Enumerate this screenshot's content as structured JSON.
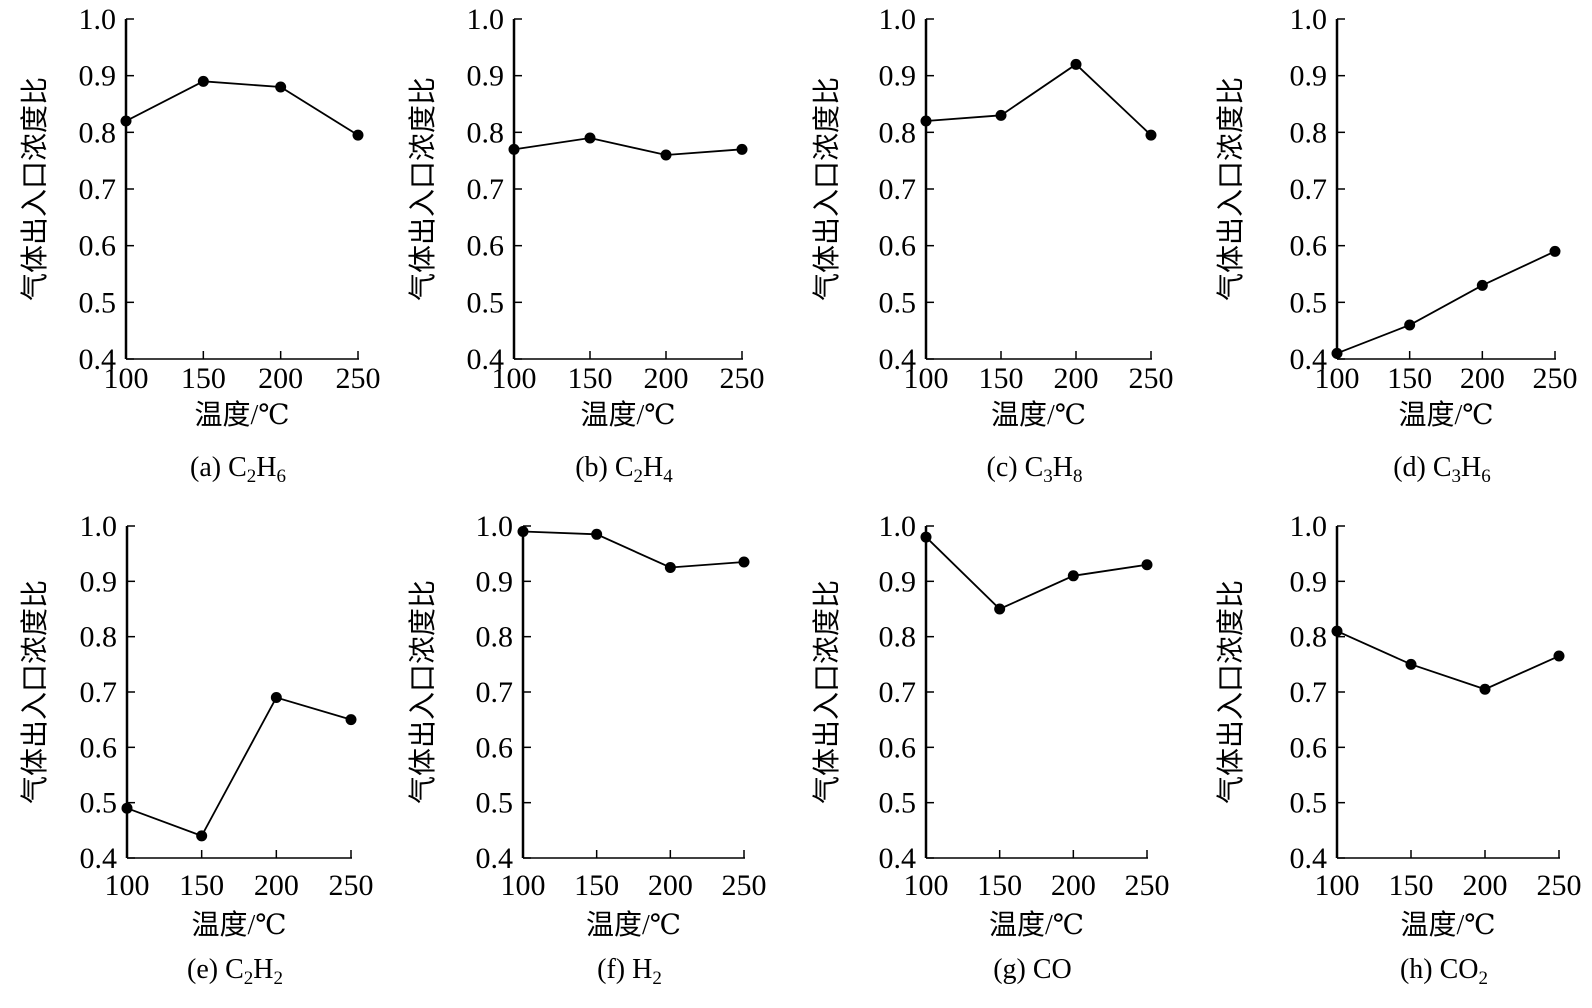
{
  "chart_data": [
    {
      "type": "line",
      "panel": "a",
      "caption_prefix": "(a) ",
      "caption_formula": [
        [
          "C",
          ""
        ],
        [
          "2",
          "sub"
        ],
        [
          "H",
          ""
        ],
        [
          "6",
          "sub"
        ]
      ],
      "caption_text": "(a) C2H6",
      "xlabel": "温度/℃",
      "ylabel": "气体出入口浓度比",
      "x": [
        100,
        150,
        200,
        250
      ],
      "values": [
        0.82,
        0.89,
        0.88,
        0.795
      ],
      "xticks": [
        "100",
        "150",
        "200",
        "250"
      ],
      "yticks": [
        "0.4",
        "0.5",
        "0.6",
        "0.7",
        "0.8",
        "0.9",
        "1.0"
      ],
      "xlim": [
        100,
        250
      ],
      "ylim": [
        0.4,
        1.0
      ],
      "grid": false,
      "marker": "filled-circle"
    },
    {
      "type": "line",
      "panel": "b",
      "caption_prefix": "(b) ",
      "caption_formula": [
        [
          "C",
          ""
        ],
        [
          "2",
          "sub"
        ],
        [
          "H",
          ""
        ],
        [
          "4",
          "sub"
        ]
      ],
      "caption_text": "(b) C2H4",
      "xlabel": "温度/℃",
      "ylabel": "气体出入口浓度比",
      "x": [
        100,
        150,
        200,
        250
      ],
      "values": [
        0.77,
        0.79,
        0.76,
        0.77
      ],
      "xticks": [
        "100",
        "150",
        "200",
        "250"
      ],
      "yticks": [
        "0.4",
        "0.5",
        "0.6",
        "0.7",
        "0.8",
        "0.9",
        "1.0"
      ],
      "xlim": [
        100,
        250
      ],
      "ylim": [
        0.4,
        1.0
      ],
      "grid": false,
      "marker": "filled-circle"
    },
    {
      "type": "line",
      "panel": "c",
      "caption_prefix": "(c) ",
      "caption_formula": [
        [
          "C",
          ""
        ],
        [
          "3",
          "sub"
        ],
        [
          "H",
          ""
        ],
        [
          "8",
          "sub"
        ]
      ],
      "caption_text": "(c) C3H8",
      "xlabel": "温度/℃",
      "ylabel": "气体出入口浓度比",
      "x": [
        100,
        150,
        200,
        250
      ],
      "values": [
        0.82,
        0.83,
        0.92,
        0.795
      ],
      "xticks": [
        "100",
        "150",
        "200",
        "250"
      ],
      "yticks": [
        "0.4",
        "0.5",
        "0.6",
        "0.7",
        "0.8",
        "0.9",
        "1.0"
      ],
      "xlim": [
        100,
        250
      ],
      "ylim": [
        0.4,
        1.0
      ],
      "grid": false,
      "marker": "filled-circle"
    },
    {
      "type": "line",
      "panel": "d",
      "caption_prefix": "(d) ",
      "caption_formula": [
        [
          "C",
          ""
        ],
        [
          "3",
          "sub"
        ],
        [
          "H",
          ""
        ],
        [
          "6",
          "sub"
        ]
      ],
      "caption_text": "(d) C3H6",
      "xlabel": "温度/℃",
      "ylabel": "气体出入口浓度比",
      "x": [
        100,
        150,
        200,
        250
      ],
      "values": [
        0.41,
        0.46,
        0.53,
        0.59
      ],
      "xticks": [
        "100",
        "150",
        "200",
        "250"
      ],
      "yticks": [
        "0.4",
        "0.5",
        "0.6",
        "0.7",
        "0.8",
        "0.9",
        "1.0"
      ],
      "xlim": [
        100,
        250
      ],
      "ylim": [
        0.4,
        1.0
      ],
      "grid": false,
      "marker": "filled-circle"
    },
    {
      "type": "line",
      "panel": "e",
      "caption_prefix": "(e) ",
      "caption_formula": [
        [
          "C",
          ""
        ],
        [
          "2",
          "sub"
        ],
        [
          "H",
          ""
        ],
        [
          "2",
          "sub"
        ]
      ],
      "caption_text": "(e) C2H2",
      "xlabel": "温度/℃",
      "ylabel": "气体出入口浓度比",
      "x": [
        100,
        150,
        200,
        250
      ],
      "values": [
        0.49,
        0.44,
        0.69,
        0.65
      ],
      "xticks": [
        "100",
        "150",
        "200",
        "250"
      ],
      "yticks": [
        "0.4",
        "0.5",
        "0.6",
        "0.7",
        "0.8",
        "0.9",
        "1.0"
      ],
      "xlim": [
        100,
        250
      ],
      "ylim": [
        0.4,
        1.0
      ],
      "grid": false,
      "marker": "filled-circle"
    },
    {
      "type": "line",
      "panel": "f",
      "caption_prefix": "(f) ",
      "caption_formula": [
        [
          "H",
          ""
        ],
        [
          "2",
          "sub"
        ]
      ],
      "caption_text": "(f) H2",
      "xlabel": "温度/℃",
      "ylabel": "气体出入口浓度比",
      "x": [
        100,
        150,
        200,
        250
      ],
      "values": [
        0.99,
        0.985,
        0.925,
        0.935
      ],
      "xticks": [
        "100",
        "150",
        "200",
        "250"
      ],
      "yticks": [
        "0.4",
        "0.5",
        "0.6",
        "0.7",
        "0.8",
        "0.9",
        "1.0"
      ],
      "xlim": [
        100,
        250
      ],
      "ylim": [
        0.4,
        1.0
      ],
      "grid": false,
      "marker": "filled-circle"
    },
    {
      "type": "line",
      "panel": "g",
      "caption_prefix": "(g) ",
      "caption_formula": [
        [
          "CO",
          ""
        ]
      ],
      "caption_text": "(g) CO",
      "xlabel": "温度/℃",
      "ylabel": "气体出入口浓度比",
      "x": [
        100,
        150,
        200,
        250
      ],
      "values": [
        0.98,
        0.85,
        0.91,
        0.93
      ],
      "xticks": [
        "100",
        "150",
        "200",
        "250"
      ],
      "yticks": [
        "0.4",
        "0.5",
        "0.6",
        "0.7",
        "0.8",
        "0.9",
        "1.0"
      ],
      "xlim": [
        100,
        250
      ],
      "ylim": [
        0.4,
        1.0
      ],
      "grid": false,
      "marker": "filled-circle"
    },
    {
      "type": "line",
      "panel": "h",
      "caption_prefix": "(h) ",
      "caption_formula": [
        [
          "CO",
          ""
        ],
        [
          "2",
          "sub"
        ]
      ],
      "caption_text": "(h) CO2",
      "xlabel": "温度/℃",
      "ylabel": "气体出入口浓度比",
      "x": [
        100,
        150,
        200,
        250
      ],
      "values": [
        0.81,
        0.75,
        0.705,
        0.765
      ],
      "xticks": [
        "100",
        "150",
        "200",
        "250"
      ],
      "yticks": [
        "0.4",
        "0.5",
        "0.6",
        "0.7",
        "0.8",
        "0.9",
        "1.0"
      ],
      "xlim": [
        100,
        250
      ],
      "ylim": [
        0.4,
        1.0
      ],
      "grid": false,
      "marker": "filled-circle"
    }
  ]
}
